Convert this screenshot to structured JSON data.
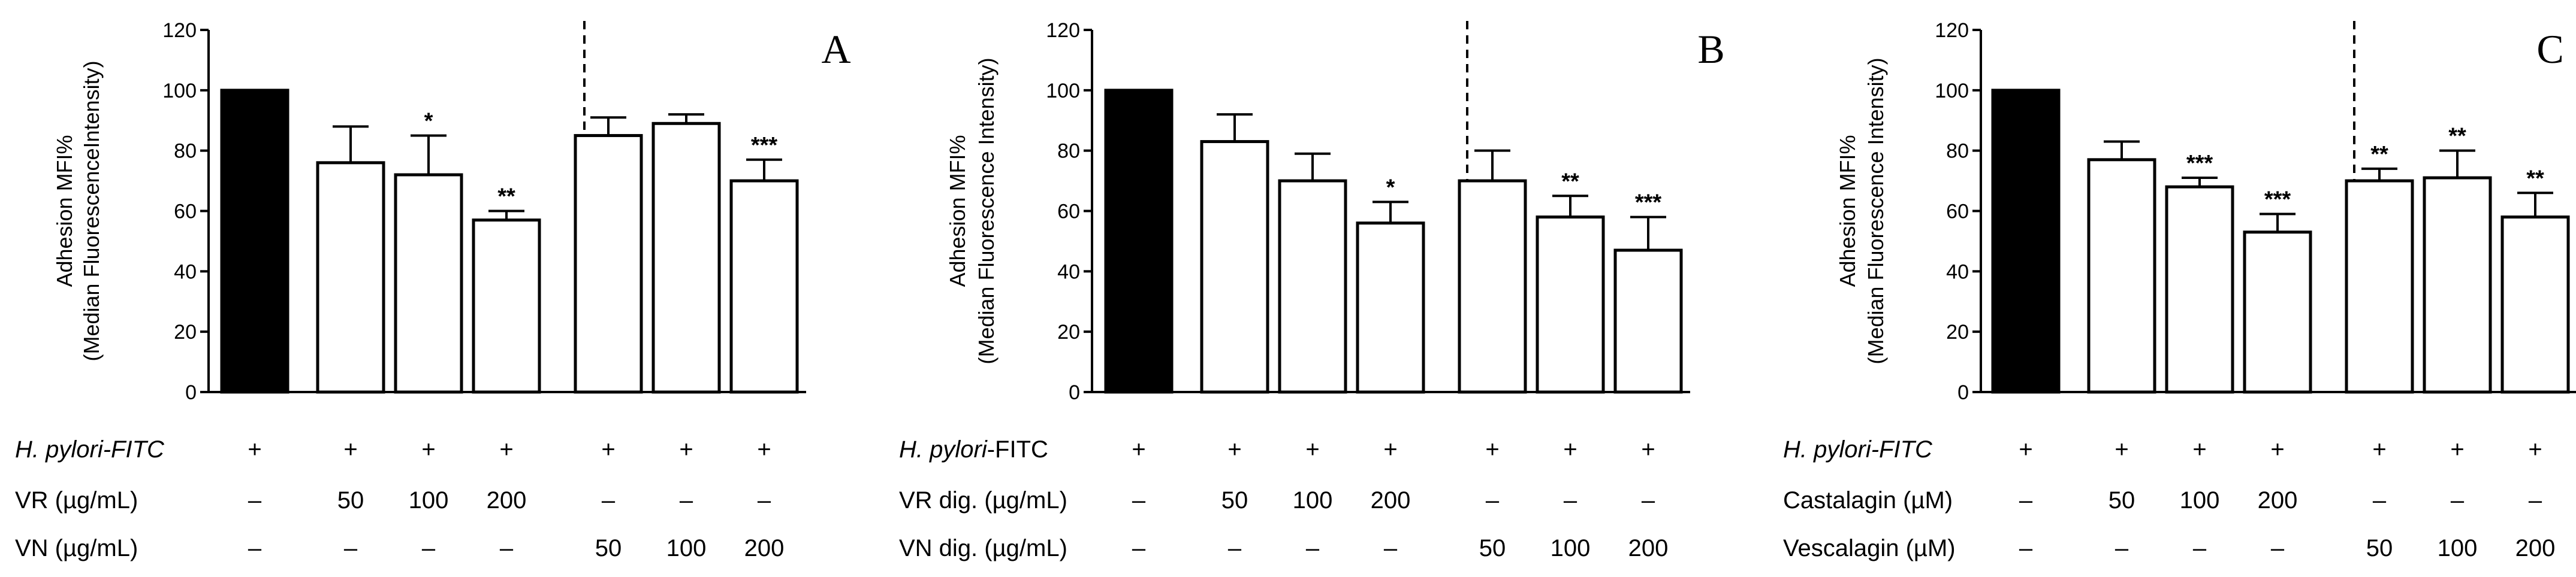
{
  "chart_data": [
    {
      "type": "bar",
      "panel": "A",
      "ylabel_line1": "Adhesion MFI%",
      "ylabel_line2": "(Median FluorescenceIntensity)",
      "ylim": [
        0,
        120
      ],
      "yticks": [
        0,
        20,
        40,
        60,
        80,
        100,
        120
      ],
      "values": [
        100,
        76,
        72,
        57,
        85,
        89,
        70
      ],
      "errors": [
        0,
        12,
        13,
        3,
        6,
        3,
        7
      ],
      "colors": [
        "#000000",
        "#ffffff",
        "#ffffff",
        "#ffffff",
        "#ffffff",
        "#ffffff",
        "#ffffff"
      ],
      "significance": [
        "",
        "",
        "*",
        "**",
        "",
        "",
        "***"
      ],
      "rows": [
        {
          "label": "H. pylori-FITC",
          "italic": true,
          "cells": [
            "+",
            "+",
            "+",
            "+",
            "+",
            "+",
            "+"
          ]
        },
        {
          "label": "VR (µg/mL)",
          "italic": false,
          "cells": [
            "–",
            "50",
            "100",
            "200",
            "–",
            "–",
            "–"
          ]
        },
        {
          "label": "VN (µg/mL)",
          "italic": false,
          "cells": [
            "–",
            "–",
            "–",
            "–",
            "50",
            "100",
            "200"
          ]
        }
      ]
    },
    {
      "type": "bar",
      "panel": "B",
      "ylabel_line1": "Adhesion MFI%",
      "ylabel_line2": "(Median Fluorescence Intensity)",
      "ylim": [
        0,
        120
      ],
      "yticks": [
        0,
        20,
        40,
        60,
        80,
        100,
        120
      ],
      "values": [
        100,
        83,
        70,
        56,
        70,
        58,
        47
      ],
      "errors": [
        0,
        9,
        9,
        7,
        10,
        7,
        11
      ],
      "colors": [
        "#000000",
        "#ffffff",
        "#ffffff",
        "#ffffff",
        "#ffffff",
        "#ffffff",
        "#ffffff"
      ],
      "significance": [
        "",
        "",
        "",
        "*",
        "",
        "**",
        "***"
      ],
      "rows": [
        {
          "label": "H. pylori-FITC",
          "italic": false,
          "italic_prefix": "H. pylori",
          "suffix": "-FITC",
          "cells": [
            "+",
            "+",
            "+",
            "+",
            "+",
            "+",
            "+"
          ]
        },
        {
          "label": "VR dig. (µg/mL)",
          "italic": false,
          "cells": [
            "–",
            "50",
            "100",
            "200",
            "–",
            "–",
            "–"
          ]
        },
        {
          "label": "VN dig. (µg/mL)",
          "italic": false,
          "cells": [
            "–",
            "–",
            "–",
            "–",
            "50",
            "100",
            "200"
          ]
        }
      ]
    },
    {
      "type": "bar",
      "panel": "C",
      "ylabel_line1": "Adhesion MFI%",
      "ylabel_line2": "(Median Fluorescence Intensity)",
      "ylim": [
        0,
        120
      ],
      "yticks": [
        0,
        20,
        40,
        60,
        80,
        100,
        120
      ],
      "values": [
        100,
        77,
        68,
        53,
        70,
        71,
        58
      ],
      "errors": [
        0,
        6,
        3,
        6,
        4,
        9,
        8
      ],
      "colors": [
        "#000000",
        "#ffffff",
        "#ffffff",
        "#ffffff",
        "#ffffff",
        "#ffffff",
        "#ffffff"
      ],
      "significance": [
        "",
        "",
        "***",
        "***",
        "**",
        "**",
        "**"
      ],
      "rows": [
        {
          "label": "H. pylori-FITC",
          "italic": true,
          "cells": [
            "+",
            "+",
            "+",
            "+",
            "+",
            "+",
            "+"
          ]
        },
        {
          "label": "Castalagin (µM)",
          "italic": false,
          "cells": [
            "–",
            "50",
            "100",
            "200",
            "–",
            "–",
            "–"
          ]
        },
        {
          "label": "Vescalagin (µM)",
          "italic": false,
          "cells": [
            "–",
            "–",
            "–",
            "–",
            "50",
            "100",
            "200"
          ]
        }
      ]
    }
  ]
}
